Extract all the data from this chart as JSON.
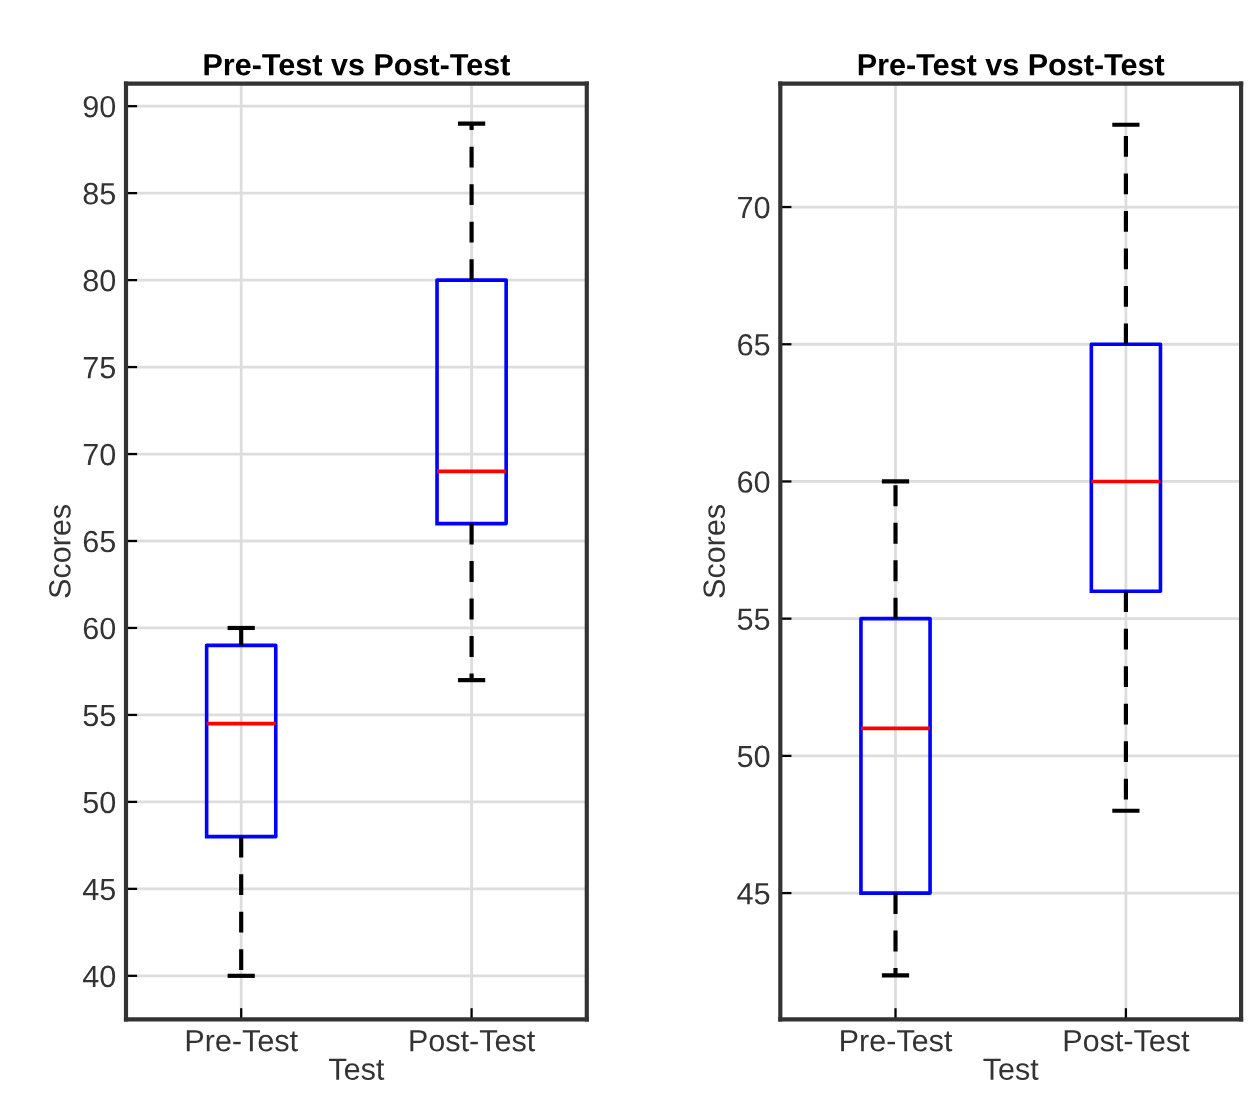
{
  "chart_data": [
    {
      "type": "box",
      "title": "Pre-Test vs Post-Test",
      "xlabel": "Test",
      "ylabel": "Scores",
      "categories": [
        "Pre-Test",
        "Post-Test"
      ],
      "ylim": [
        37.5,
        91.3
      ],
      "yticks": [
        40,
        45,
        50,
        55,
        60,
        65,
        70,
        75,
        80,
        85,
        90
      ],
      "grid": true,
      "line_style": "dashed",
      "boxes": [
        {
          "low": 40,
          "q1": 48,
          "median": 54.5,
          "q3": 59,
          "high": 60
        },
        {
          "low": 57,
          "q1": 66,
          "median": 69,
          "q3": 80,
          "high": 89
        }
      ],
      "color": "#0000ff"
    },
    {
      "type": "box",
      "title": "Pre-Test vs Post-Test",
      "xlabel": "Test",
      "ylabel": "Scores",
      "categories": [
        "Pre-Test",
        "Post-Test"
      ],
      "ylim": [
        40.4,
        74.5
      ],
      "yticks": [
        45,
        50,
        55,
        60,
        65,
        70
      ],
      "grid": true,
      "line_style": "dashed",
      "boxes": [
        {
          "low": 42,
          "q1": 45,
          "median": 51,
          "q3": 55,
          "high": 60
        },
        {
          "low": 48,
          "q1": 56,
          "median": 60,
          "q3": 65,
          "high": 73
        }
      ],
      "color": "#0000ff"
    }
  ]
}
